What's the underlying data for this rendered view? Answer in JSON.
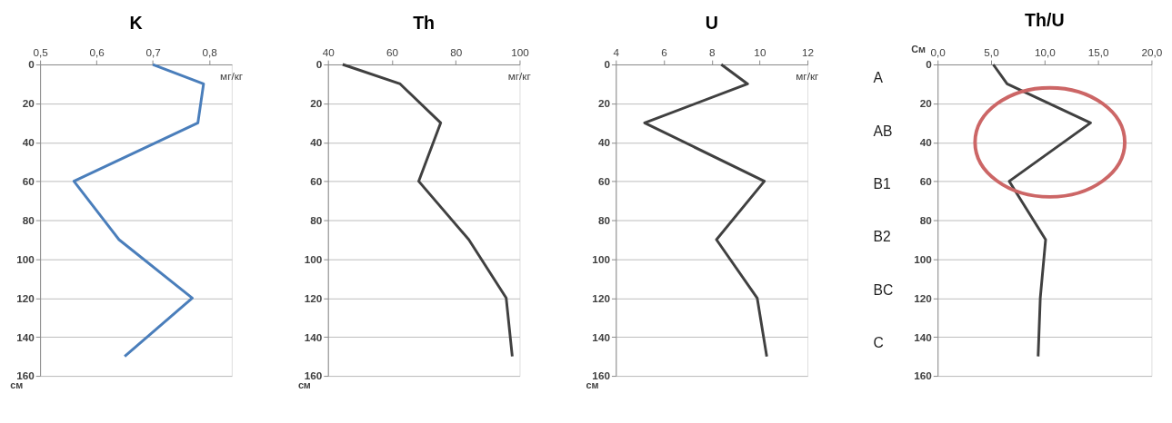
{
  "chart_data": [
    {
      "type": "line",
      "title": "K",
      "xlabel": "мг/кг",
      "ylabel": "см",
      "series": [
        {
          "color": "#4a7ebb",
          "x": [
            0.7,
            0.79,
            0.78,
            0.56,
            0.64,
            0.77,
            0.65
          ],
          "values": [
            0,
            10,
            30,
            60,
            90,
            120,
            150
          ]
        }
      ],
      "xlim": [
        0.5,
        0.84
      ],
      "xticks": [
        {
          "value": 0.5,
          "label": "0,5"
        },
        {
          "value": 0.6,
          "label": "0,6"
        },
        {
          "value": 0.7,
          "label": "0,7"
        },
        {
          "value": 0.8,
          "label": "0,8"
        }
      ],
      "ylim": [
        160,
        0
      ],
      "yticks": [
        0,
        20,
        40,
        60,
        80,
        100,
        120,
        140,
        160
      ],
      "grid": "y",
      "marker": "none",
      "line_style": "solid"
    },
    {
      "type": "line",
      "title": "Th",
      "xlabel": "мг/кг",
      "ylabel": "см",
      "series": [
        {
          "color": "#404040",
          "x": [
            44.6,
            62.6,
            75.3,
            68.4,
            84.1,
            95.8,
            97.7
          ],
          "values": [
            0,
            10,
            30,
            60,
            90,
            120,
            150
          ]
        }
      ],
      "xlim": [
        40,
        100
      ],
      "xticks": [
        40,
        60,
        80,
        100
      ],
      "ylim": [
        160,
        0
      ],
      "yticks": [
        0,
        20,
        40,
        60,
        80,
        100,
        120,
        140,
        160
      ],
      "grid": "y",
      "marker": "none",
      "line_style": "solid"
    },
    {
      "type": "line",
      "title": "U",
      "xlabel": "мг/кг",
      "ylabel": "см",
      "series": [
        {
          "color": "#404040",
          "x": [
            8.4,
            9.5,
            5.2,
            10.2,
            8.2,
            9.9,
            10.3
          ],
          "values": [
            0,
            10,
            30,
            60,
            90,
            120,
            150
          ]
        }
      ],
      "xlim": [
        4,
        12
      ],
      "xticks": [
        4,
        6,
        8,
        10,
        12
      ],
      "ylim": [
        160,
        0
      ],
      "yticks": [
        0,
        20,
        40,
        60,
        80,
        100,
        120,
        140,
        160
      ],
      "grid": "y",
      "marker": "none",
      "line_style": "solid"
    },
    {
      "type": "line",
      "title": "Th/U",
      "ylabel": "См",
      "series": [
        {
          "color": "#404040",
          "x": [
            5.2,
            6.5,
            14.3,
            6.7,
            10.1,
            9.6,
            9.4
          ],
          "values": [
            0,
            10,
            30,
            60,
            90,
            120,
            150
          ]
        }
      ],
      "xlim": [
        0,
        20
      ],
      "xticks": [
        {
          "value": 0,
          "label": "0,0"
        },
        {
          "value": 5,
          "label": "5,0"
        },
        {
          "value": 10,
          "label": "10,0"
        },
        {
          "value": 15,
          "label": "15,0"
        },
        {
          "value": 20,
          "label": "20,0"
        }
      ],
      "ylim": [
        160,
        0
      ],
      "yticks": [
        0,
        20,
        40,
        60,
        80,
        100,
        120,
        140,
        160
      ],
      "grid": "y",
      "marker": "none",
      "line_style": "solid",
      "annotations": [
        "A",
        "AB",
        "B1",
        "B2",
        "BC",
        "C"
      ]
    }
  ]
}
